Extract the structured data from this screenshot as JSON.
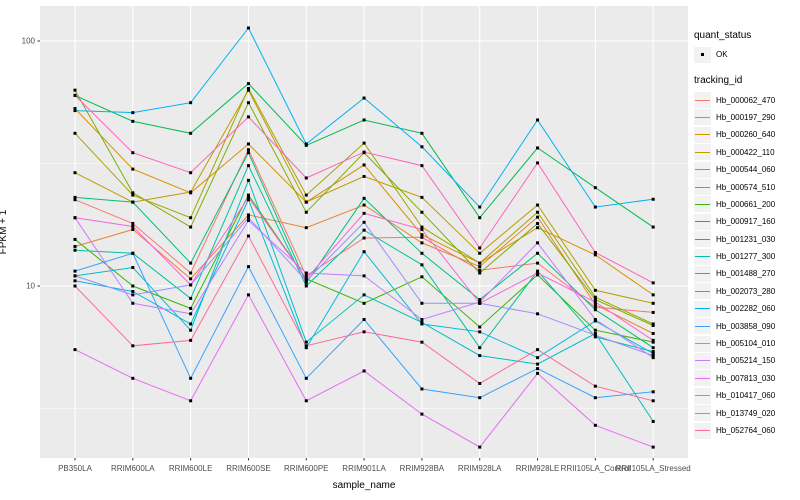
{
  "figure": {
    "background": "#ffffff",
    "panel_background": "#ebebeb",
    "grid_color": "#ffffff",
    "tick_color": "#333333",
    "point_color": "#000000"
  },
  "legend": {
    "quant_status_title": "quant_status",
    "ok_label": "OK",
    "tracking_id_title": "tracking_id"
  },
  "chart_data": {
    "type": "line",
    "title": "",
    "xlabel": "sample_name",
    "ylabel": "FPKM + 1",
    "y_scale": "log10",
    "y_ticks": [
      10,
      100
    ],
    "y_minor_ticks": [
      3.162,
      31.62
    ],
    "ylim": [
      2.0,
      139
    ],
    "grid": true,
    "legend_position": "right",
    "categories": [
      "PB350LA",
      "RRIM600LA",
      "RRIM600LE",
      "RRIM600SE",
      "RRIM600PE",
      "RRIM901LA",
      "RRIM928BA",
      "RRIM928LA",
      "RRIM928LE",
      "RRII105LA_Control",
      "RRII105LA_Stressed"
    ],
    "series": [
      {
        "name": "Hb_000062_470",
        "color": "#F8766D",
        "values": [
          22.5,
          18.0,
          11.3,
          36.0,
          11.0,
          15.7,
          15.8,
          11.6,
          12.4,
          8.2,
          7.8
        ]
      },
      {
        "name": "Hb_000197_290",
        "color": "#EA8331",
        "values": [
          14.5,
          17.0,
          10.7,
          19.5,
          17.3,
          21.4,
          15.0,
          12.0,
          19.1,
          8.4,
          6.4
        ]
      },
      {
        "name": "Hb_000260_640",
        "color": "#D89000",
        "values": [
          53.0,
          30.0,
          24.0,
          38.0,
          22.0,
          31.2,
          16.2,
          12.4,
          17.3,
          13.4,
          9.2
        ]
      },
      {
        "name": "Hb_000422_110",
        "color": "#C09B00",
        "values": [
          29.0,
          22.0,
          24.2,
          63.0,
          22.0,
          28.0,
          23.0,
          13.6,
          21.4,
          9.6,
          8.5
        ]
      },
      {
        "name": "Hb_000544_060",
        "color": "#A3A500",
        "values": [
          42.0,
          23.5,
          19.0,
          64.0,
          23.5,
          38.3,
          17.4,
          12.4,
          20.0,
          9.0,
          7.0
        ]
      },
      {
        "name": "Hb_000574_510",
        "color": "#7CAE00",
        "values": [
          63.0,
          24.0,
          17.4,
          56.0,
          20.0,
          35.0,
          20.0,
          11.3,
          18.0,
          8.8,
          6.9
        ]
      },
      {
        "name": "Hb_000661_200",
        "color": "#39B600",
        "values": [
          15.5,
          10.0,
          8.1,
          23.5,
          10.7,
          8.5,
          10.9,
          6.8,
          11.1,
          6.6,
          5.9
        ]
      },
      {
        "name": "Hb_000917_160",
        "color": "#00BB4E",
        "values": [
          60.0,
          47.0,
          42.0,
          67.0,
          37.5,
          47.6,
          42.0,
          19.0,
          36.6,
          25.2,
          17.4
        ]
      },
      {
        "name": "Hb_001231_030",
        "color": "#00BF7D",
        "values": [
          23.0,
          22.0,
          12.4,
          35.0,
          10.3,
          22.8,
          13.6,
          8.8,
          13.6,
          8.0,
          5.6
        ]
      },
      {
        "name": "Hb_001277_300",
        "color": "#00C1A3",
        "values": [
          14.0,
          13.6,
          8.9,
          31.0,
          10.0,
          16.9,
          12.2,
          5.6,
          11.5,
          6.2,
          5.4
        ]
      },
      {
        "name": "Hb_001488_270",
        "color": "#00BFC4",
        "values": [
          11.0,
          11.9,
          6.6,
          27.0,
          5.9,
          9.2,
          7.1,
          5.2,
          4.8,
          6.4,
          2.8
        ]
      },
      {
        "name": "Hb_002073_280",
        "color": "#00BAE0",
        "values": [
          10.5,
          9.5,
          7.0,
          22.5,
          5.6,
          13.8,
          7.0,
          6.5,
          5.1,
          7.2,
          5.3
        ]
      },
      {
        "name": "Hb_002282_060",
        "color": "#00B0F6",
        "values": [
          52.0,
          51.0,
          56.0,
          113.0,
          38.0,
          58.5,
          37.0,
          21.0,
          47.6,
          21.0,
          22.6
        ]
      },
      {
        "name": "Hb_003858_090",
        "color": "#35A2FF",
        "values": [
          11.5,
          13.6,
          4.2,
          12.0,
          4.2,
          7.3,
          3.8,
          3.5,
          4.6,
          3.5,
          3.7
        ]
      },
      {
        "name": "Hb_005104_010",
        "color": "#9590FF",
        "values": [
          11.0,
          9.2,
          10.1,
          19.0,
          10.5,
          18.2,
          8.5,
          8.5,
          7.7,
          6.3,
          5.2
        ]
      },
      {
        "name": "Hb_005214_150",
        "color": "#C77CFF",
        "values": [
          19.0,
          8.5,
          7.7,
          18.5,
          11.3,
          11.0,
          7.3,
          8.6,
          15.0,
          7.3,
          5.1
        ]
      },
      {
        "name": "Hb_007813_030",
        "color": "#E76BF3",
        "values": [
          5.5,
          4.2,
          3.4,
          9.2,
          3.4,
          4.5,
          3.0,
          2.2,
          4.4,
          2.7,
          2.2
        ]
      },
      {
        "name": "Hb_010417_060",
        "color": "#FA62DB",
        "values": [
          19.0,
          17.5,
          10.1,
          23.0,
          10.7,
          19.8,
          17.0,
          8.5,
          11.3,
          8.6,
          6.0
        ]
      },
      {
        "name": "Hb_013749_020",
        "color": "#FF62BC",
        "values": [
          60.0,
          35.0,
          29.0,
          49.0,
          27.6,
          35.2,
          31.0,
          14.3,
          31.8,
          13.7,
          10.3
        ]
      },
      {
        "name": "Hb_052764_060",
        "color": "#FF6A98",
        "values": [
          10.0,
          5.7,
          6.0,
          16.0,
          5.7,
          6.5,
          5.9,
          4.0,
          5.5,
          3.9,
          3.4
        ]
      }
    ]
  }
}
